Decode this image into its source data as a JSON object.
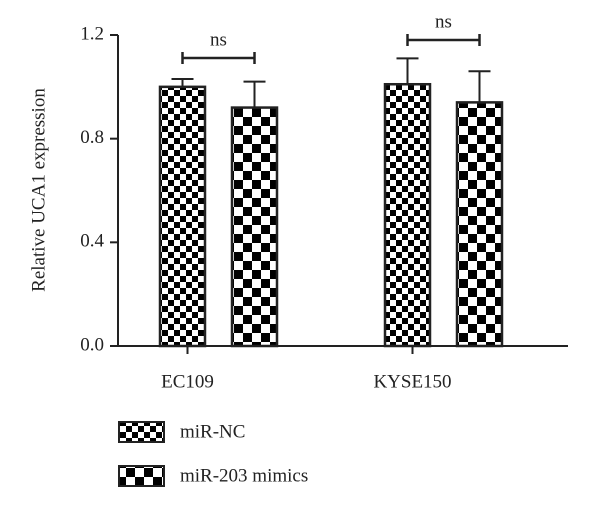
{
  "chart_data": {
    "type": "bar",
    "y_label": "Relative UCA1 expression",
    "categories": [
      "EC109",
      "KYSE150"
    ],
    "series": [
      {
        "name": "miR-NC",
        "color": "#000000",
        "values": [
          1.0,
          1.01
        ],
        "errors": [
          0.03,
          0.1
        ]
      },
      {
        "name": "miR-203 mimics",
        "color": "#000000",
        "values": [
          0.92,
          0.94
        ],
        "errors": [
          0.1,
          0.12
        ]
      }
    ],
    "annotations": [
      "ns",
      "ns"
    ],
    "ylim": [
      0,
      1.2
    ],
    "yticks": [
      {
        "value": 0,
        "label": "0.0"
      },
      0.4,
      0.8,
      1.2
    ],
    "grid": false
  }
}
